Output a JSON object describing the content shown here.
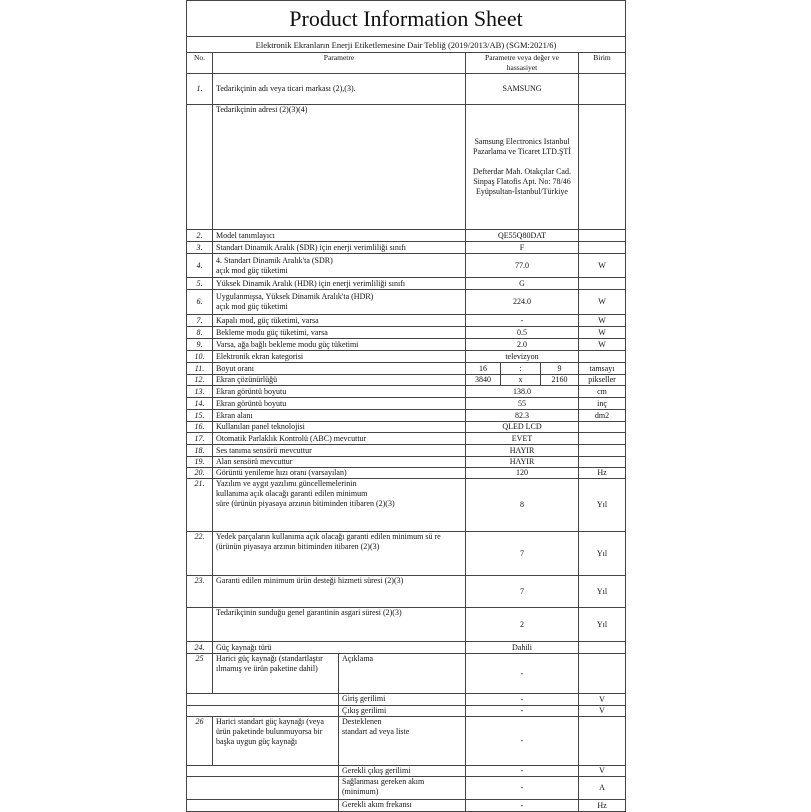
{
  "title": "Product Information Sheet",
  "subtitle": "Elektronik Ekranların Enerji Etiketlemesine Dair Tebliğ (2019/2013/AB) (SGM:2021/6)",
  "headers": {
    "no": "No.",
    "param": "Parametre",
    "value": "Parametre veya değer ve hassasiyet",
    "unit": "Birim"
  },
  "rows": [
    {
      "no": "1.",
      "param": "Tedarikçinin adı veya ticari markası (2),(3).",
      "value": "SAMSUNG",
      "unit": ""
    },
    {
      "no": "",
      "param": "Tedarikçinin adresi (2)(3)(4)",
      "value": "Samsung Electronics Istanbul Pazarlama ve Ticaret LTD.ŞTİ\n\nDefterdar Mah. Otakçılar Cad. Sinpaş Flatofis Apt. No: 78/46 Eyüpsultan-İstanbul/Türkiye",
      "unit": ""
    },
    {
      "no": "2.",
      "param": "Model tanımlayıcı",
      "value": "QE55Q80DAT",
      "unit": ""
    },
    {
      "no": "3.",
      "param": "Standart Dinamik Aralık (SDR) için enerji verimliliği sınıfı",
      "value": "F",
      "unit": ""
    },
    {
      "no": "4.",
      "param": "4. Standart Dinamik Aralık'ta (SDR)\naçık mod güç tüketimi",
      "value": "77.0",
      "unit": "W"
    },
    {
      "no": "5.",
      "param": "Yüksek Dinamik Aralık (HDR) için enerji verimliliği sınıfı",
      "value": "G",
      "unit": ""
    },
    {
      "no": "6.",
      "param": "Uygulanmışsa, Yüksek Dinamik Aralık'ta (HDR)\naçık mod güç tüketimi",
      "value": "224.0",
      "unit": "W"
    },
    {
      "no": "7.",
      "param": "Kapalı mod, güç tüketimi, varsa",
      "value": "-",
      "unit": "W"
    },
    {
      "no": "8.",
      "param": "Bekleme modu güç tüketimi, varsa",
      "value": "0.5",
      "unit": "W"
    },
    {
      "no": "9.",
      "param": "Varsa, ağa bağlı bekleme modu güç tüketimi",
      "value": "2.0",
      "unit": "W"
    },
    {
      "no": "10.",
      "param": "Elektronik ekran kategorisi",
      "value": "televizyon",
      "unit": ""
    },
    {
      "no": "11.",
      "param": "Boyut oranı",
      "values": [
        "16",
        ":",
        "9"
      ],
      "unit": "tamsayı"
    },
    {
      "no": "12.",
      "param": "Ekran çözünürlüğü",
      "values": [
        "3840",
        "x",
        "2160"
      ],
      "unit": "pikseller"
    },
    {
      "no": "13.",
      "param": "Ekran görüntü boyutu",
      "value": "138.0",
      "unit": "cm"
    },
    {
      "no": "14.",
      "param": "Ekran görüntü boyutu",
      "value": "55",
      "unit": "inç"
    },
    {
      "no": "15.",
      "param": "Ekran alanı",
      "value": "82.3",
      "unit": "dm2"
    },
    {
      "no": "16.",
      "param": "Kullanılan panel teknolojisi",
      "value": "QLED LCD",
      "unit": ""
    },
    {
      "no": "17.",
      "param": "Otomatik Parlaklık Kontrolü (ABC) mevcuttur",
      "value": "EVET",
      "unit": ""
    },
    {
      "no": "18.",
      "param": "Ses tanıma sensörü mevcuttur",
      "value": "HAYIR",
      "unit": ""
    },
    {
      "no": "19.",
      "param": "Alan sensörü mevcuttur",
      "value": "HAYIR",
      "unit": ""
    },
    {
      "no": "20.",
      "param": "Görüntü yenileme hızı oranı (varsayılan)",
      "value": "120",
      "unit": "Hz"
    },
    {
      "no": "21.",
      "param": "Yazılım ve aygıt yazılımı güncellemelerinin\nkullanıma açık olacağı garanti edilen minimum\nsüre (ürünün piyasaya arzının bitiminden itibaren (2)(3)",
      "value": "8",
      "unit": "Yıl"
    },
    {
      "no": "22.",
      "param": "Yedek parçaların kullanıma açık olacağı garanti edilen minimum sü re (ürünün piyasaya arzının bitiminden itibaren (2)(3)",
      "value": "7",
      "unit": "Yıl"
    },
    {
      "no": "23.",
      "param": "Garanti edilen minimum ürün desteği hizmeti süresi (2)(3)",
      "value": "7",
      "unit": "Yıl"
    },
    {
      "no": "",
      "param": "Tedarikçinin sunduğu genel garantinin asgari süresi (2)(3)",
      "value": "2",
      "unit": "Yıl"
    },
    {
      "no": "24.",
      "param": "Güç kaynağı türü",
      "value": "Dahili",
      "unit": ""
    },
    {
      "no": "25",
      "param": "Harici güç kaynağı (standartlaştır ılmamış ve ürün paketine dahil)",
      "sub": "Açıklama",
      "value": "-",
      "unit": ""
    },
    {
      "sub": "Giriş gerilimi",
      "value": "-",
      "unit": "V"
    },
    {
      "sub": "Çıkış gerilimi",
      "value": "-",
      "unit": "V"
    },
    {
      "no": "26",
      "param": "Harici standart güç kaynağı (veya ürün paketinde bulunmuyorsa bir başka uygun güç kaynağı",
      "sub": "Desteklenen\nstandart ad veya liste",
      "value": "-",
      "unit": ""
    },
    {
      "sub": "Gerekli çıkış gerilimi",
      "value": "-",
      "unit": "V"
    },
    {
      "sub": "Sağlanması gereken akım\n(minimum)",
      "value": "-",
      "unit": "A"
    },
    {
      "sub": "Gerekli akım frekansı",
      "value": "-",
      "unit": "Hz"
    }
  ]
}
